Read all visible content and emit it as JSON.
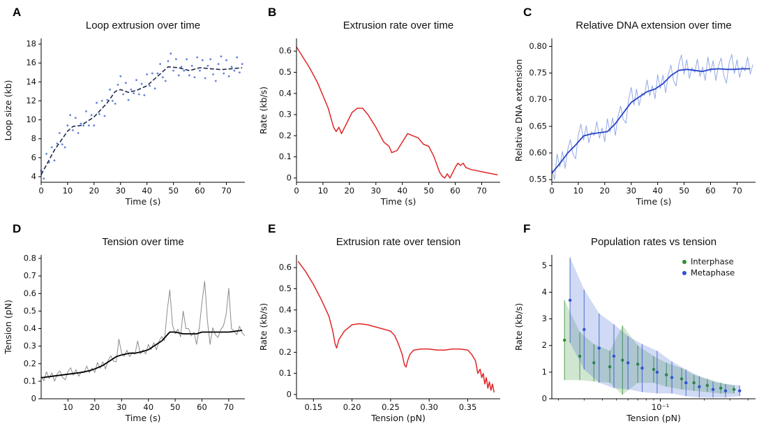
{
  "figure": {
    "background": "#ffffff"
  },
  "chart_data": [
    {
      "label": "A",
      "type": "scatter",
      "title": "Loop extrusion over time",
      "xlabel": "Time (s)",
      "ylabel": "Loop size (kb)",
      "xlim": [
        0,
        77
      ],
      "ylim": [
        3.4,
        18.6
      ],
      "xticks": [
        0,
        10,
        20,
        30,
        40,
        50,
        60,
        70
      ],
      "xtick_labels": [
        "0",
        "10",
        "20",
        "30",
        "40",
        "50",
        "60",
        "70"
      ],
      "yticks": [
        4,
        6,
        8,
        10,
        12,
        14,
        16,
        18
      ],
      "ytick_labels": [
        "4",
        "6",
        "8",
        "10",
        "12",
        "14",
        "16",
        "18"
      ],
      "series": [
        {
          "type": "scatter",
          "name": "loop-size-raw",
          "color": "#3f63d0",
          "opacity": 0.8,
          "r": 1.4,
          "x_start": 0,
          "x_step": 1,
          "y": [
            4.6,
            3.8,
            6.4,
            5.5,
            7.1,
            5.7,
            7.5,
            8.6,
            7.4,
            7.1,
            9.4,
            10.5,
            8.9,
            10.2,
            8.6,
            9.6,
            9.4,
            10.9,
            9.4,
            10.5,
            9.4,
            11.8,
            10.6,
            12,
            10.4,
            12.1,
            13.2,
            12,
            11.7,
            13.7,
            14.6,
            12.7,
            13.9,
            12.1,
            13.2,
            12.8,
            14.2,
            12.7,
            13.8,
            12.6,
            14.8,
            13.6,
            14.9,
            13.3,
            14.9,
            15.9,
            14.5,
            14.1,
            16.2,
            17,
            15.2,
            16.4,
            14.7,
            15.6,
            15.2,
            16.4,
            14.7,
            15.7,
            14.5,
            16.6,
            15.2,
            16.3,
            14.4,
            15.7,
            16.4,
            14.8,
            14.1,
            15.9,
            16.7,
            14.9,
            16.3,
            14.6,
            15.6,
            15.2,
            16.6,
            15,
            15.9
          ]
        },
        {
          "type": "line",
          "name": "loop-size-smoothed",
          "color": "#1d2951",
          "width": 1.6,
          "dash": "6 3",
          "x": [
            0,
            5,
            10,
            12,
            15,
            20,
            25,
            28,
            30,
            33,
            36,
            40,
            44,
            48,
            52,
            56,
            60,
            64,
            68,
            72,
            76
          ],
          "y": [
            4.2,
            6.8,
            8.8,
            9.3,
            9.4,
            10.3,
            11.8,
            13,
            13.2,
            12.9,
            13.1,
            13.6,
            14.6,
            15.6,
            15.5,
            15.2,
            15.5,
            15.4,
            15.3,
            15.4,
            15.5
          ]
        }
      ]
    },
    {
      "label": "B",
      "type": "line",
      "title": "Extrusion rate over time",
      "xlabel": "Time (s)",
      "ylabel": "Rate (kb/s)",
      "xlim": [
        0,
        77
      ],
      "ylim": [
        -0.02,
        0.66
      ],
      "xticks": [
        0,
        10,
        20,
        30,
        40,
        50,
        60,
        70
      ],
      "xtick_labels": [
        "0",
        "10",
        "20",
        "30",
        "40",
        "50",
        "60",
        "70"
      ],
      "yticks": [
        0,
        0.1,
        0.2,
        0.3,
        0.4,
        0.5,
        0.6
      ],
      "ytick_labels": [
        "0",
        "0.1",
        "0.2",
        "0.3",
        "0.4",
        "0.5",
        "0.6"
      ],
      "series": [
        {
          "type": "line",
          "name": "extrusion-rate",
          "color": "#e02525",
          "width": 1.5,
          "x": [
            0,
            5,
            8,
            12,
            14,
            15,
            16,
            17,
            19,
            21,
            23,
            25,
            27,
            30,
            33,
            35,
            36,
            38,
            40,
            42,
            44,
            46,
            48,
            50,
            52,
            54,
            55,
            56,
            57,
            58,
            60,
            61,
            62,
            63,
            64,
            66,
            68,
            70,
            72,
            74,
            76
          ],
          "y": [
            0.62,
            0.52,
            0.45,
            0.33,
            0.24,
            0.22,
            0.24,
            0.21,
            0.26,
            0.31,
            0.33,
            0.33,
            0.3,
            0.24,
            0.17,
            0.15,
            0.12,
            0.13,
            0.17,
            0.21,
            0.2,
            0.19,
            0.16,
            0.15,
            0.1,
            0.03,
            0.01,
            0,
            0.02,
            0,
            0.05,
            0.07,
            0.06,
            0.07,
            0.05,
            0.04,
            0.035,
            0.03,
            0.025,
            0.02,
            0.015
          ]
        }
      ]
    },
    {
      "label": "C",
      "type": "line",
      "title": "Relative DNA extension over time",
      "xlabel": "Time (s)",
      "ylabel": "Relative DNA extension",
      "xlim": [
        0,
        77
      ],
      "ylim": [
        0.545,
        0.815
      ],
      "xticks": [
        0,
        10,
        20,
        30,
        40,
        50,
        60,
        70
      ],
      "xtick_labels": [
        "0",
        "10",
        "20",
        "30",
        "40",
        "50",
        "60",
        "70"
      ],
      "yticks": [
        0.55,
        0.6,
        0.65,
        0.7,
        0.75,
        0.8
      ],
      "ytick_labels": [
        "0.55",
        "0.60",
        "0.65",
        "0.70",
        "0.75",
        "0.80"
      ],
      "series": [
        {
          "type": "line",
          "name": "extension-raw",
          "color": "#93a9e6",
          "width": 1,
          "x_start": 0,
          "x_step": 1,
          "y": [
            0.57,
            0.55,
            0.598,
            0.574,
            0.603,
            0.571,
            0.606,
            0.625,
            0.598,
            0.589,
            0.633,
            0.654,
            0.624,
            0.651,
            0.619,
            0.64,
            0.633,
            0.659,
            0.628,
            0.647,
            0.621,
            0.664,
            0.639,
            0.666,
            0.633,
            0.668,
            0.688,
            0.663,
            0.656,
            0.7,
            0.723,
            0.69,
            0.72,
            0.689,
            0.712,
            0.708,
            0.737,
            0.707,
            0.726,
            0.702,
            0.747,
            0.721,
            0.746,
            0.713,
            0.746,
            0.765,
            0.736,
            0.726,
            0.767,
            0.784,
            0.748,
            0.775,
            0.74,
            0.76,
            0.751,
            0.776,
            0.744,
            0.761,
            0.736,
            0.78,
            0.751,
            0.773,
            0.736,
            0.764,
            0.778,
            0.745,
            0.731,
            0.769,
            0.785,
            0.749,
            0.775,
            0.742,
            0.762,
            0.754,
            0.78,
            0.748,
            0.766
          ]
        },
        {
          "type": "line",
          "name": "extension-smoothed",
          "color": "#2743c9",
          "width": 1.8,
          "x": [
            0,
            3,
            6,
            9,
            12,
            15,
            18,
            21,
            24,
            27,
            30,
            33,
            36,
            39,
            42,
            45,
            48,
            51,
            54,
            57,
            60,
            63,
            66,
            69,
            72,
            75
          ],
          "y": [
            0.562,
            0.58,
            0.6,
            0.615,
            0.632,
            0.636,
            0.638,
            0.64,
            0.655,
            0.675,
            0.695,
            0.705,
            0.715,
            0.72,
            0.73,
            0.745,
            0.755,
            0.757,
            0.755,
            0.753,
            0.757,
            0.758,
            0.757,
            0.757,
            0.758,
            0.758
          ]
        }
      ]
    },
    {
      "label": "D",
      "type": "line",
      "title": "Tension over time",
      "xlabel": "Time (s)",
      "ylabel": "Tension (pN)",
      "xlim": [
        0,
        76
      ],
      "ylim": [
        0,
        0.82
      ],
      "xticks": [
        10,
        20,
        30,
        40,
        50,
        60,
        70
      ],
      "xtick_labels": [
        "10",
        "20",
        "30",
        "40",
        "50",
        "60",
        "70"
      ],
      "yticks": [
        0,
        0.1,
        0.2,
        0.3,
        0.4,
        0.5,
        0.6,
        0.7,
        0.8
      ],
      "ytick_labels": [
        "0",
        "0.1",
        "0.2",
        "0.3",
        "0.4",
        "0.5",
        "0.6",
        "0.7",
        "0.8"
      ],
      "series": [
        {
          "type": "line",
          "name": "tension-raw",
          "color": "#8c8c8c",
          "width": 1,
          "x_start": 0,
          "x_step": 1,
          "y": [
            0.13,
            0.102,
            0.154,
            0.116,
            0.148,
            0.1,
            0.142,
            0.159,
            0.121,
            0.108,
            0.155,
            0.177,
            0.134,
            0.166,
            0.128,
            0.155,
            0.148,
            0.187,
            0.148,
            0.175,
            0.15,
            0.207,
            0.173,
            0.21,
            0.17,
            0.22,
            0.245,
            0.215,
            0.21,
            0.34,
            0.26,
            0.243,
            0.277,
            0.24,
            0.265,
            0.255,
            0.33,
            0.255,
            0.28,
            0.255,
            0.31,
            0.28,
            0.32,
            0.28,
            0.33,
            0.355,
            0.331,
            0.5,
            0.62,
            0.42,
            0.37,
            0.397,
            0.353,
            0.5,
            0.4,
            0.4,
            0.358,
            0.38,
            0.31,
            0.405,
            0.55,
            0.67,
            0.45,
            0.31,
            0.405,
            0.365,
            0.35,
            0.395,
            0.415,
            0.48,
            0.63,
            0.4,
            0.385,
            0.365,
            0.413,
            0.375,
            0.36
          ]
        },
        {
          "type": "line",
          "name": "tension-smoothed",
          "color": "#000000",
          "width": 1.8,
          "x": [
            0,
            5,
            10,
            15,
            18,
            20,
            23,
            25,
            28,
            30,
            33,
            35,
            38,
            40,
            43,
            45,
            48,
            50,
            53,
            55,
            58,
            60,
            65,
            70,
            75
          ],
          "y": [
            0.12,
            0.13,
            0.14,
            0.15,
            0.16,
            0.17,
            0.19,
            0.21,
            0.24,
            0.25,
            0.26,
            0.26,
            0.27,
            0.28,
            0.31,
            0.33,
            0.38,
            0.38,
            0.37,
            0.37,
            0.37,
            0.38,
            0.38,
            0.38,
            0.39
          ]
        }
      ]
    },
    {
      "label": "E",
      "type": "line",
      "title": "Extrusion rate over tension",
      "xlabel": "Tension (pN)",
      "ylabel": "Rate (kb/s)",
      "xlim": [
        0.128,
        0.392
      ],
      "ylim": [
        -0.02,
        0.66
      ],
      "xticks": [
        0.15,
        0.2,
        0.25,
        0.3,
        0.35
      ],
      "xtick_labels": [
        "0.15",
        "0.20",
        "0.25",
        "0.30",
        "0.35"
      ],
      "yticks": [
        0,
        0.1,
        0.2,
        0.3,
        0.4,
        0.5,
        0.6
      ],
      "ytick_labels": [
        "0",
        "0.1",
        "0.2",
        "0.3",
        "0.4",
        "0.5",
        "0.6"
      ],
      "series": [
        {
          "type": "line",
          "name": "rate-vs-tension",
          "color": "#e02525",
          "width": 1.5,
          "x": [
            0.13,
            0.14,
            0.15,
            0.16,
            0.17,
            0.175,
            0.178,
            0.18,
            0.183,
            0.19,
            0.2,
            0.21,
            0.22,
            0.23,
            0.24,
            0.25,
            0.255,
            0.26,
            0.265,
            0.268,
            0.27,
            0.272,
            0.275,
            0.28,
            0.29,
            0.3,
            0.31,
            0.32,
            0.33,
            0.34,
            0.35,
            0.355,
            0.36,
            0.363,
            0.366,
            0.368,
            0.37,
            0.372,
            0.374,
            0.376,
            0.378,
            0.38,
            0.382,
            0.384
          ],
          "y": [
            0.63,
            0.58,
            0.52,
            0.45,
            0.37,
            0.3,
            0.24,
            0.22,
            0.26,
            0.3,
            0.33,
            0.335,
            0.33,
            0.32,
            0.31,
            0.3,
            0.28,
            0.24,
            0.19,
            0.14,
            0.13,
            0.16,
            0.19,
            0.21,
            0.215,
            0.215,
            0.21,
            0.21,
            0.215,
            0.215,
            0.21,
            0.19,
            0.16,
            0.1,
            0.12,
            0.08,
            0.1,
            0.05,
            0.08,
            0.03,
            0.06,
            0.02,
            0.05,
            0.01
          ]
        }
      ]
    },
    {
      "label": "F",
      "type": "scatter",
      "title": "Population rates vs tension",
      "xlabel": "Tension (pN)",
      "ylabel": "Rate (kb/s)",
      "xscale": "log",
      "xlim": [
        0.018,
        0.45
      ],
      "ylim": [
        0,
        5.4
      ],
      "xticks": [
        0.1
      ],
      "xtick_labels": [
        "10⁻¹"
      ],
      "xminor": [
        0.02,
        0.03,
        0.04,
        0.05,
        0.06,
        0.07,
        0.08,
        0.09,
        0.2,
        0.3,
        0.4
      ],
      "yticks": [
        0,
        1,
        2,
        3,
        4,
        5
      ],
      "ytick_labels": [
        "0",
        "1",
        "2",
        "3",
        "4",
        "5"
      ],
      "legend": [
        {
          "label": "Interphase",
          "color": "#2f8f2f"
        },
        {
          "label": "Metaphase",
          "color": "#2f55cc"
        }
      ],
      "series": [
        {
          "type": "errband",
          "name": "Interphase",
          "color": "#2f8f2f",
          "band_opacity": 0.22,
          "r": 2.2,
          "x": [
            0.022,
            0.028,
            0.035,
            0.045,
            0.055,
            0.07,
            0.09,
            0.11,
            0.14,
            0.17,
            0.21,
            0.26,
            0.32
          ],
          "y": [
            2.2,
            1.6,
            1.35,
            1.2,
            1.45,
            1.3,
            1.1,
            0.9,
            0.75,
            0.6,
            0.5,
            0.4,
            0.35
          ],
          "err": [
            1.5,
            0.9,
            0.7,
            0.6,
            1.3,
            0.7,
            0.5,
            0.45,
            0.4,
            0.3,
            0.25,
            0.2,
            0.15
          ]
        },
        {
          "type": "errband",
          "name": "Metaphase",
          "color": "#2f55cc",
          "band_opacity": 0.22,
          "r": 2.2,
          "x": [
            0.024,
            0.03,
            0.038,
            0.048,
            0.06,
            0.075,
            0.095,
            0.12,
            0.15,
            0.185,
            0.23,
            0.28,
            0.35
          ],
          "y": [
            3.7,
            2.6,
            1.9,
            1.6,
            1.35,
            1.15,
            1,
            0.8,
            0.6,
            0.45,
            0.35,
            0.3,
            0.3
          ],
          "err": [
            1.6,
            1.5,
            1.3,
            1.2,
            1,
            0.9,
            0.8,
            0.6,
            0.5,
            0.4,
            0.3,
            0.25,
            0.2
          ]
        }
      ]
    }
  ]
}
